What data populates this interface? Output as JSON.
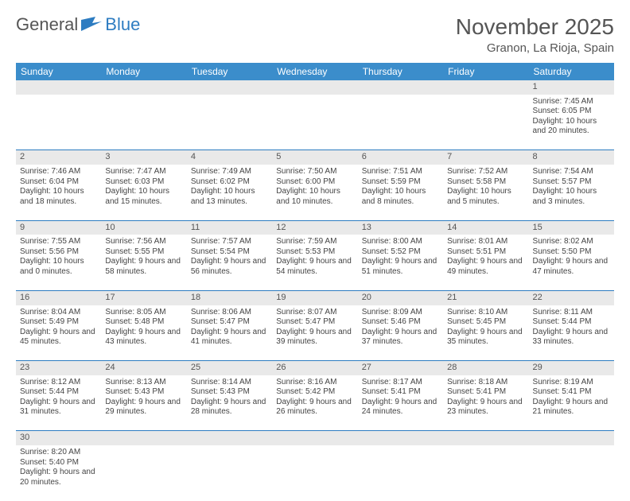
{
  "brand": {
    "part1": "General",
    "part2": "Blue"
  },
  "title": "November 2025",
  "location": "Granon, La Rioja, Spain",
  "colors": {
    "header_bg": "#3b8dcb",
    "header_text": "#ffffff",
    "daynum_bg": "#e9e9e9",
    "rule": "#2d7cc1",
    "text": "#444444",
    "title_color": "#555555"
  },
  "day_headers": [
    "Sunday",
    "Monday",
    "Tuesday",
    "Wednesday",
    "Thursday",
    "Friday",
    "Saturday"
  ],
  "weeks": [
    [
      null,
      null,
      null,
      null,
      null,
      null,
      {
        "n": "1",
        "sunrise": "7:45 AM",
        "sunset": "6:05 PM",
        "daylight": "10 hours and 20 minutes."
      }
    ],
    [
      {
        "n": "2",
        "sunrise": "7:46 AM",
        "sunset": "6:04 PM",
        "daylight": "10 hours and 18 minutes."
      },
      {
        "n": "3",
        "sunrise": "7:47 AM",
        "sunset": "6:03 PM",
        "daylight": "10 hours and 15 minutes."
      },
      {
        "n": "4",
        "sunrise": "7:49 AM",
        "sunset": "6:02 PM",
        "daylight": "10 hours and 13 minutes."
      },
      {
        "n": "5",
        "sunrise": "7:50 AM",
        "sunset": "6:00 PM",
        "daylight": "10 hours and 10 minutes."
      },
      {
        "n": "6",
        "sunrise": "7:51 AM",
        "sunset": "5:59 PM",
        "daylight": "10 hours and 8 minutes."
      },
      {
        "n": "7",
        "sunrise": "7:52 AM",
        "sunset": "5:58 PM",
        "daylight": "10 hours and 5 minutes."
      },
      {
        "n": "8",
        "sunrise": "7:54 AM",
        "sunset": "5:57 PM",
        "daylight": "10 hours and 3 minutes."
      }
    ],
    [
      {
        "n": "9",
        "sunrise": "7:55 AM",
        "sunset": "5:56 PM",
        "daylight": "10 hours and 0 minutes."
      },
      {
        "n": "10",
        "sunrise": "7:56 AM",
        "sunset": "5:55 PM",
        "daylight": "9 hours and 58 minutes."
      },
      {
        "n": "11",
        "sunrise": "7:57 AM",
        "sunset": "5:54 PM",
        "daylight": "9 hours and 56 minutes."
      },
      {
        "n": "12",
        "sunrise": "7:59 AM",
        "sunset": "5:53 PM",
        "daylight": "9 hours and 54 minutes."
      },
      {
        "n": "13",
        "sunrise": "8:00 AM",
        "sunset": "5:52 PM",
        "daylight": "9 hours and 51 minutes."
      },
      {
        "n": "14",
        "sunrise": "8:01 AM",
        "sunset": "5:51 PM",
        "daylight": "9 hours and 49 minutes."
      },
      {
        "n": "15",
        "sunrise": "8:02 AM",
        "sunset": "5:50 PM",
        "daylight": "9 hours and 47 minutes."
      }
    ],
    [
      {
        "n": "16",
        "sunrise": "8:04 AM",
        "sunset": "5:49 PM",
        "daylight": "9 hours and 45 minutes."
      },
      {
        "n": "17",
        "sunrise": "8:05 AM",
        "sunset": "5:48 PM",
        "daylight": "9 hours and 43 minutes."
      },
      {
        "n": "18",
        "sunrise": "8:06 AM",
        "sunset": "5:47 PM",
        "daylight": "9 hours and 41 minutes."
      },
      {
        "n": "19",
        "sunrise": "8:07 AM",
        "sunset": "5:47 PM",
        "daylight": "9 hours and 39 minutes."
      },
      {
        "n": "20",
        "sunrise": "8:09 AM",
        "sunset": "5:46 PM",
        "daylight": "9 hours and 37 minutes."
      },
      {
        "n": "21",
        "sunrise": "8:10 AM",
        "sunset": "5:45 PM",
        "daylight": "9 hours and 35 minutes."
      },
      {
        "n": "22",
        "sunrise": "8:11 AM",
        "sunset": "5:44 PM",
        "daylight": "9 hours and 33 minutes."
      }
    ],
    [
      {
        "n": "23",
        "sunrise": "8:12 AM",
        "sunset": "5:44 PM",
        "daylight": "9 hours and 31 minutes."
      },
      {
        "n": "24",
        "sunrise": "8:13 AM",
        "sunset": "5:43 PM",
        "daylight": "9 hours and 29 minutes."
      },
      {
        "n": "25",
        "sunrise": "8:14 AM",
        "sunset": "5:43 PM",
        "daylight": "9 hours and 28 minutes."
      },
      {
        "n": "26",
        "sunrise": "8:16 AM",
        "sunset": "5:42 PM",
        "daylight": "9 hours and 26 minutes."
      },
      {
        "n": "27",
        "sunrise": "8:17 AM",
        "sunset": "5:41 PM",
        "daylight": "9 hours and 24 minutes."
      },
      {
        "n": "28",
        "sunrise": "8:18 AM",
        "sunset": "5:41 PM",
        "daylight": "9 hours and 23 minutes."
      },
      {
        "n": "29",
        "sunrise": "8:19 AM",
        "sunset": "5:41 PM",
        "daylight": "9 hours and 21 minutes."
      }
    ],
    [
      {
        "n": "30",
        "sunrise": "8:20 AM",
        "sunset": "5:40 PM",
        "daylight": "9 hours and 20 minutes."
      },
      null,
      null,
      null,
      null,
      null,
      null
    ]
  ],
  "labels": {
    "sunrise": "Sunrise:",
    "sunset": "Sunset:",
    "daylight": "Daylight:"
  }
}
